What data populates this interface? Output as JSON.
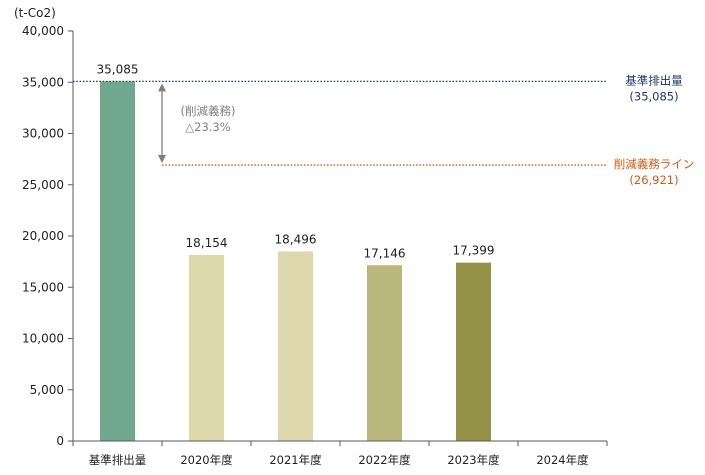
{
  "chart_data": {
    "type": "bar",
    "unit_label": "(t-Co2)",
    "categories": [
      "基準排出量",
      "2020年度",
      "2021年度",
      "2022年度",
      "2023年度",
      "2024年度"
    ],
    "values": [
      35085,
      18154,
      18496,
      17146,
      17399,
      null
    ],
    "value_labels": [
      "35,085",
      "18,154",
      "18,496",
      "17,146",
      "17,399",
      ""
    ],
    "bar_colors": [
      "#6fa88f",
      "#ddd8ac",
      "#ddd8ac",
      "#b9b77b",
      "#939146",
      null
    ],
    "ylim": [
      0,
      40000
    ],
    "yticks": [
      0,
      5000,
      10000,
      15000,
      20000,
      25000,
      30000,
      35000,
      40000
    ],
    "ytick_labels": [
      "0",
      "5,000",
      "10,000",
      "15,000",
      "20,000",
      "25,000",
      "30,000",
      "35,000",
      "40,000"
    ],
    "grid": false,
    "reference_lines": [
      {
        "value": 35085,
        "label": "基準排出量",
        "sublabel": "(35,085)",
        "color": "#1f3864",
        "style": "dotted"
      },
      {
        "value": 26921,
        "label": "削減義務ライン",
        "sublabel": "(26,921)",
        "color": "#d05a16",
        "style": "dotted"
      }
    ],
    "annotation": {
      "line1": "(削減義務)",
      "line2": "△23.3%",
      "from": 35085,
      "to": 26921,
      "color": "#7f7f7f"
    }
  }
}
